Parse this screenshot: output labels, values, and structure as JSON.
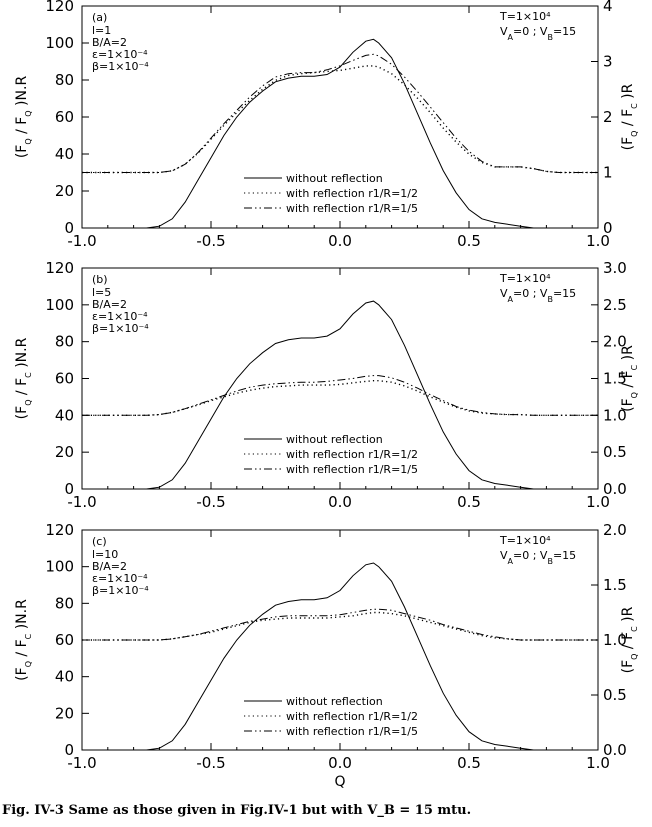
{
  "caption": "Fig. IV-3 Same as those given in Fig.IV-1 but with V_B = 15 mtu.",
  "chart_data": [
    {
      "type": "line",
      "panel_label": "(a)",
      "params_left": [
        "l=1",
        "B/A=2",
        "ε=1×10⁻⁴",
        "β=1×10⁻⁴"
      ],
      "params_right": [
        "T=1×10⁴",
        "V_A=0 ; V_B=15"
      ],
      "xlabel": "",
      "ylabel": "(F_Q / F_Q )N.R",
      "y2label": "(F_Q / F_C )R",
      "xlim": [
        -1.0,
        1.0
      ],
      "ylim": [
        0,
        120
      ],
      "y2lim": [
        0,
        4
      ],
      "x_ticks": [
        "-1.0",
        "-0.5",
        "0.0",
        "0.5",
        "1.0"
      ],
      "y_ticks": [
        "0",
        "20",
        "40",
        "60",
        "80",
        "100",
        "120"
      ],
      "y2_ticks": [
        "0",
        "1",
        "2",
        "3",
        "4"
      ],
      "x": [
        -1.0,
        -0.9,
        -0.8,
        -0.75,
        -0.7,
        -0.65,
        -0.6,
        -0.55,
        -0.5,
        -0.45,
        -0.4,
        -0.35,
        -0.3,
        -0.25,
        -0.2,
        -0.15,
        -0.1,
        -0.05,
        0.0,
        0.05,
        0.1,
        0.13,
        0.15,
        0.2,
        0.25,
        0.3,
        0.35,
        0.4,
        0.45,
        0.5,
        0.55,
        0.6,
        0.65,
        0.7,
        0.75,
        0.8,
        0.85,
        0.9,
        1.0
      ],
      "series": [
        {
          "name": "without reflection",
          "style": "solid",
          "axis": "left",
          "values": [
            0,
            0,
            0,
            0,
            1,
            5,
            14,
            26,
            38,
            50,
            60,
            68,
            74,
            79,
            81,
            82,
            82,
            83,
            87,
            95,
            101,
            102,
            100,
            92,
            78,
            62,
            46,
            31,
            19,
            10,
            5,
            3,
            2,
            1,
            0,
            0,
            0,
            0,
            0
          ]
        },
        {
          "name": "with reflection r1/R=1/2",
          "style": "dotted",
          "axis": "right",
          "values": [
            1.0,
            1.0,
            1.0,
            1.0,
            1.0,
            1.03,
            1.15,
            1.35,
            1.6,
            1.85,
            2.08,
            2.3,
            2.5,
            2.66,
            2.75,
            2.78,
            2.8,
            2.82,
            2.84,
            2.88,
            2.92,
            2.92,
            2.9,
            2.78,
            2.58,
            2.34,
            2.08,
            1.8,
            1.55,
            1.33,
            1.18,
            1.1,
            1.1,
            1.1,
            1.07,
            1.02,
            1.0,
            1.0,
            1.0
          ]
        },
        {
          "name": "with reflection r1/R=1/5",
          "style": "dashdot",
          "axis": "right",
          "values": [
            1.0,
            1.0,
            1.0,
            1.0,
            1.0,
            1.03,
            1.15,
            1.36,
            1.62,
            1.88,
            2.12,
            2.36,
            2.56,
            2.72,
            2.78,
            2.8,
            2.8,
            2.85,
            2.92,
            3.02,
            3.11,
            3.13,
            3.1,
            2.95,
            2.72,
            2.46,
            2.18,
            1.9,
            1.62,
            1.38,
            1.2,
            1.1,
            1.1,
            1.1,
            1.07,
            1.02,
            1.0,
            1.0,
            1.0
          ]
        }
      ]
    },
    {
      "type": "line",
      "panel_label": "(b)",
      "params_left": [
        "l=5",
        "B/A=2",
        "ε=1×10⁻⁴",
        "β=1×10⁻⁴"
      ],
      "params_right": [
        "T=1×10⁴",
        "V_A=0 ; V_B=15"
      ],
      "xlabel": "",
      "ylabel": "(F_Q / F_C )N.R",
      "y2label": "(F_Q / F_C )R",
      "xlim": [
        -1.0,
        1.0
      ],
      "ylim": [
        0,
        120
      ],
      "y2lim": [
        0,
        3
      ],
      "x_ticks": [
        "-1.0",
        "-0.5",
        "0.0",
        "0.5",
        "1.0"
      ],
      "y_ticks": [
        "0",
        "20",
        "40",
        "60",
        "80",
        "100",
        "120"
      ],
      "y2_ticks": [
        "0.0",
        "0.5",
        "1.0",
        "1.5",
        "2.0",
        "2.5",
        "3.0"
      ],
      "x": [
        -1.0,
        -0.9,
        -0.8,
        -0.75,
        -0.7,
        -0.65,
        -0.6,
        -0.55,
        -0.5,
        -0.45,
        -0.4,
        -0.35,
        -0.3,
        -0.25,
        -0.2,
        -0.15,
        -0.1,
        -0.05,
        0.0,
        0.05,
        0.1,
        0.13,
        0.15,
        0.2,
        0.25,
        0.3,
        0.35,
        0.4,
        0.45,
        0.5,
        0.55,
        0.6,
        0.65,
        0.7,
        0.75,
        0.8,
        0.85,
        0.9,
        1.0
      ],
      "series": [
        {
          "name": "without reflection",
          "style": "solid",
          "axis": "left",
          "values": [
            0,
            0,
            0,
            0,
            1,
            5,
            14,
            26,
            38,
            50,
            60,
            68,
            74,
            79,
            81,
            82,
            82,
            83,
            87,
            95,
            101,
            102,
            100,
            92,
            78,
            62,
            46,
            31,
            19,
            10,
            5,
            3,
            2,
            1,
            0,
            0,
            0,
            0,
            0
          ]
        },
        {
          "name": "with reflection r1/R=1/2",
          "style": "dotted",
          "axis": "right",
          "values": [
            1.0,
            1.0,
            1.0,
            1.0,
            1.01,
            1.04,
            1.09,
            1.14,
            1.2,
            1.25,
            1.3,
            1.34,
            1.37,
            1.39,
            1.4,
            1.41,
            1.41,
            1.41,
            1.42,
            1.44,
            1.46,
            1.47,
            1.47,
            1.45,
            1.4,
            1.33,
            1.25,
            1.18,
            1.11,
            1.06,
            1.03,
            1.02,
            1.01,
            1.01,
            1.0,
            1.0,
            1.0,
            1.0,
            1.0
          ]
        },
        {
          "name": "with reflection r1/R=1/5",
          "style": "dashdot",
          "axis": "right",
          "values": [
            1.0,
            1.0,
            1.0,
            1.0,
            1.01,
            1.04,
            1.09,
            1.15,
            1.21,
            1.27,
            1.33,
            1.38,
            1.41,
            1.43,
            1.44,
            1.45,
            1.45,
            1.46,
            1.48,
            1.5,
            1.53,
            1.54,
            1.54,
            1.51,
            1.45,
            1.37,
            1.28,
            1.2,
            1.12,
            1.07,
            1.04,
            1.02,
            1.01,
            1.01,
            1.0,
            1.0,
            1.0,
            1.0,
            1.0
          ]
        }
      ]
    },
    {
      "type": "line",
      "panel_label": "(c)",
      "params_left": [
        "l=10",
        "B/A=2",
        "ε=1×10⁻⁴",
        "β=1×10⁻⁴"
      ],
      "params_right": [
        "T=1×10⁴",
        "V_A=0 ; V_B=15"
      ],
      "xlabel": "Q",
      "ylabel": "(F_Q / F_C )N.R",
      "y2label": "(F_Q / F_C )R",
      "xlim": [
        -1.0,
        1.0
      ],
      "ylim": [
        0,
        120
      ],
      "y2lim": [
        0,
        2
      ],
      "x_ticks": [
        "-1.0",
        "-0.5",
        "0.0",
        "0.5",
        "1.0"
      ],
      "y_ticks": [
        "0",
        "20",
        "40",
        "60",
        "80",
        "100",
        "120"
      ],
      "y2_ticks": [
        "0.0",
        "0.5",
        "1.0",
        "1.5",
        "2.0"
      ],
      "x": [
        -1.0,
        -0.9,
        -0.8,
        -0.75,
        -0.7,
        -0.65,
        -0.6,
        -0.55,
        -0.5,
        -0.45,
        -0.4,
        -0.35,
        -0.3,
        -0.25,
        -0.2,
        -0.15,
        -0.1,
        -0.05,
        0.0,
        0.05,
        0.1,
        0.13,
        0.15,
        0.2,
        0.25,
        0.3,
        0.35,
        0.4,
        0.45,
        0.5,
        0.55,
        0.6,
        0.65,
        0.7,
        0.75,
        0.8,
        0.85,
        0.9,
        1.0
      ],
      "series": [
        {
          "name": "without reflection",
          "style": "solid",
          "axis": "left",
          "values": [
            0,
            0,
            0,
            0,
            1,
            5,
            14,
            26,
            38,
            50,
            60,
            68,
            74,
            79,
            81,
            82,
            82,
            83,
            87,
            95,
            101,
            102,
            100,
            92,
            78,
            62,
            46,
            31,
            19,
            10,
            5,
            3,
            2,
            1,
            0,
            0,
            0,
            0,
            0
          ]
        },
        {
          "name": "with reflection r1/R=1/2",
          "style": "dotted",
          "axis": "right",
          "values": [
            1.0,
            1.0,
            1.0,
            1.0,
            1.0,
            1.01,
            1.03,
            1.05,
            1.07,
            1.1,
            1.13,
            1.16,
            1.18,
            1.19,
            1.2,
            1.2,
            1.2,
            1.2,
            1.21,
            1.22,
            1.24,
            1.25,
            1.25,
            1.24,
            1.22,
            1.19,
            1.16,
            1.13,
            1.1,
            1.07,
            1.04,
            1.02,
            1.01,
            1.0,
            1.0,
            1.0,
            1.0,
            1.0,
            1.0
          ]
        },
        {
          "name": "with reflection r1/R=1/5",
          "style": "dashdot",
          "axis": "right",
          "values": [
            1.0,
            1.0,
            1.0,
            1.0,
            1.0,
            1.01,
            1.03,
            1.05,
            1.08,
            1.11,
            1.14,
            1.17,
            1.19,
            1.21,
            1.22,
            1.22,
            1.22,
            1.22,
            1.23,
            1.25,
            1.27,
            1.28,
            1.28,
            1.27,
            1.24,
            1.21,
            1.18,
            1.14,
            1.11,
            1.08,
            1.05,
            1.03,
            1.01,
            1.0,
            1.0,
            1.0,
            1.0,
            1.0,
            1.0
          ]
        }
      ]
    }
  ]
}
